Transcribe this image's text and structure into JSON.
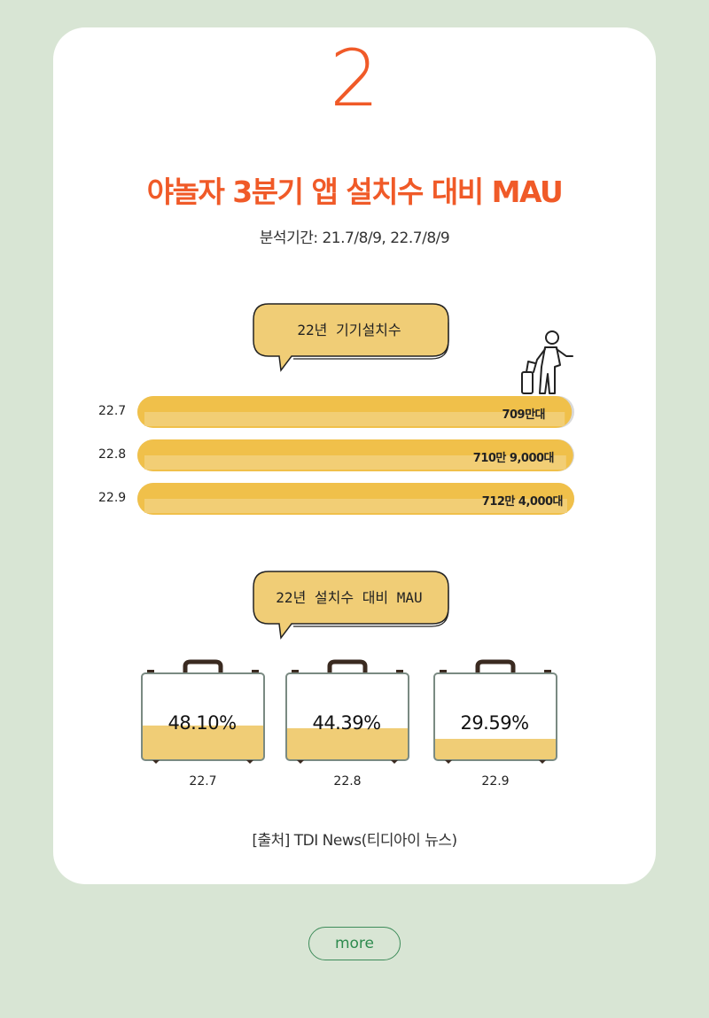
{
  "header": {
    "number": "2",
    "title": "야놀자 3분기 앱 설치수 대비 MAU",
    "period": "분석기간: 21.7/8/9, 22.7/8/9"
  },
  "bubbles": {
    "installs": "22년 기기설치수",
    "mau": "22년 설치수 대비 MAU"
  },
  "colors": {
    "accent": "#f05a28",
    "bar_fill": "#f0c04a",
    "bar_track": "#d9d9d9",
    "bubble": "#f0cd76",
    "more": "#2d8a4e"
  },
  "chart_data": [
    {
      "type": "bar",
      "orientation": "horizontal",
      "categories": [
        "22.7",
        "22.8",
        "22.9"
      ],
      "values": [
        7090000,
        7109000,
        7124000
      ],
      "value_labels": [
        "709만대",
        "710만 9,000대",
        "712만 4,000대"
      ],
      "icon": "traveler-icon"
    },
    {
      "type": "bar",
      "categories": [
        "22.7",
        "22.8",
        "22.9"
      ],
      "values": [
        48.1,
        44.39,
        29.59
      ],
      "value_labels": [
        "48.10%",
        "44.39%",
        "29.59%"
      ],
      "unit": "%",
      "icon": "suitcase-icon"
    }
  ],
  "footer": {
    "source": "[출처] TDI News(티디아이 뉴스)"
  },
  "more_button": {
    "label": "more"
  }
}
